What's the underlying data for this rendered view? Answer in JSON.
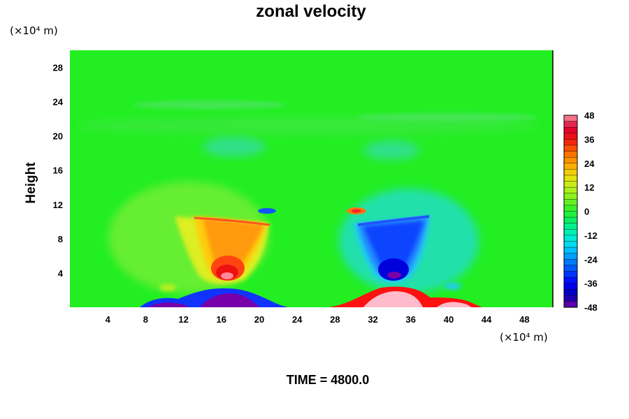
{
  "chart_data": {
    "type": "heatmap",
    "title": "zonal velocity",
    "ylabel": "Height",
    "y_unit": "(×10⁴ m)",
    "x_unit": "(×10⁴ m)",
    "xlim": [
      0,
      51
    ],
    "ylim": [
      0,
      30
    ],
    "x_ticks": [
      "4",
      "8",
      "12",
      "16",
      "20",
      "24",
      "28",
      "32",
      "36",
      "40",
      "44",
      "48"
    ],
    "y_ticks": [
      "4",
      "8",
      "12",
      "16",
      "20",
      "24",
      "28"
    ],
    "colorbar": {
      "min": -48,
      "max": 48,
      "ticks": [
        "48",
        "36",
        "24",
        "12",
        "0",
        "-12",
        "-24",
        "-36",
        "-48"
      ]
    },
    "features": [
      {
        "x": 16.3,
        "y": 4.8,
        "value": 38
      },
      {
        "x": 34.3,
        "y": 4.8,
        "value": -40
      },
      {
        "x": 17.0,
        "y": 0.8,
        "value": -48
      },
      {
        "x": 34.5,
        "y": 0.8,
        "value": 48
      },
      {
        "x": 21.0,
        "y": 11.2,
        "value": -20
      },
      {
        "x": 29.5,
        "y": 11.2,
        "value": 26
      },
      {
        "x": 16.5,
        "y": 10.2,
        "value": 24
      },
      {
        "x": 34.0,
        "y": 10.2,
        "value": -22
      }
    ]
  },
  "time_label": "TIME = 4800.0"
}
